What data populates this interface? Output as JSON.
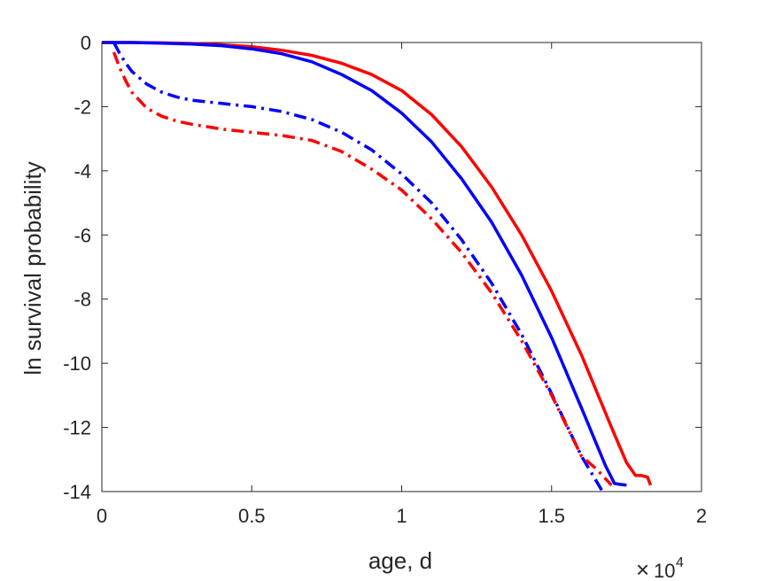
{
  "chart_data": {
    "type": "line",
    "xlabel": "age, d",
    "ylabel": "ln survival probability",
    "x_exponent_base": "10",
    "x_exponent_power": "4",
    "xlim": [
      0,
      2
    ],
    "ylim": [
      -14,
      0
    ],
    "x_tick_values": [
      0,
      0.5,
      1,
      1.5,
      2
    ],
    "x_tick_labels": [
      "0",
      "0.5",
      "1",
      "1.5",
      "2"
    ],
    "y_tick_values": [
      0,
      -2,
      -4,
      -6,
      -8,
      -10,
      -12,
      -14
    ],
    "y_tick_labels": [
      "0",
      "-2",
      "-4",
      "-6",
      "-8",
      "-10",
      "-12",
      "-14"
    ],
    "grid": false,
    "box": true,
    "series": [
      {
        "color": "#ff0000",
        "style": "solid",
        "x": [
          0,
          0.1,
          0.2,
          0.3,
          0.4,
          0.5,
          0.6,
          0.7,
          0.8,
          0.9,
          1.0,
          1.1,
          1.2,
          1.3,
          1.4,
          1.5,
          1.6,
          1.7,
          1.75,
          1.78,
          1.8,
          1.82,
          1.83
        ],
        "y": [
          0,
          0,
          -0.01,
          -0.03,
          -0.07,
          -0.13,
          -0.24,
          -0.4,
          -0.65,
          -1.0,
          -1.5,
          -2.25,
          -3.25,
          -4.5,
          -6.0,
          -7.75,
          -9.75,
          -12.0,
          -13.1,
          -13.5,
          -13.5,
          -13.55,
          -13.8
        ]
      },
      {
        "color": "#0000ff",
        "style": "solid",
        "x": [
          0,
          0.1,
          0.2,
          0.3,
          0.4,
          0.5,
          0.6,
          0.7,
          0.8,
          0.9,
          1.0,
          1.1,
          1.2,
          1.3,
          1.4,
          1.5,
          1.6,
          1.68,
          1.71,
          1.73,
          1.75
        ],
        "y": [
          0,
          0,
          -0.02,
          -0.05,
          -0.1,
          -0.2,
          -0.35,
          -0.6,
          -1.0,
          -1.5,
          -2.2,
          -3.1,
          -4.25,
          -5.6,
          -7.25,
          -9.2,
          -11.4,
          -13.2,
          -13.75,
          -13.78,
          -13.8
        ]
      },
      {
        "color": "#0000ff",
        "style": "dashdot",
        "x": [
          0.04,
          0.06,
          0.08,
          0.1,
          0.15,
          0.2,
          0.25,
          0.3,
          0.4,
          0.5,
          0.6,
          0.7,
          0.8,
          0.9,
          1.0,
          1.1,
          1.2,
          1.3,
          1.4,
          1.5,
          1.6,
          1.67
        ],
        "y": [
          0,
          -0.35,
          -0.65,
          -0.9,
          -1.3,
          -1.55,
          -1.7,
          -1.8,
          -1.9,
          -2.0,
          -2.15,
          -2.4,
          -2.8,
          -3.35,
          -4.1,
          -5.0,
          -6.15,
          -7.5,
          -9.1,
          -10.95,
          -12.9,
          -14.0
        ]
      },
      {
        "color": "#ff0000",
        "style": "dashdot",
        "x": [
          0.04,
          0.06,
          0.08,
          0.1,
          0.15,
          0.2,
          0.25,
          0.3,
          0.4,
          0.5,
          0.6,
          0.7,
          0.8,
          0.9,
          1.0,
          1.1,
          1.2,
          1.3,
          1.4,
          1.5,
          1.6,
          1.65,
          1.7
        ],
        "y": [
          -0.3,
          -0.8,
          -1.2,
          -1.55,
          -2.05,
          -2.3,
          -2.45,
          -2.55,
          -2.7,
          -2.8,
          -2.9,
          -3.05,
          -3.4,
          -3.95,
          -4.6,
          -5.5,
          -6.55,
          -7.8,
          -9.3,
          -11.0,
          -12.9,
          -13.3,
          -13.8
        ]
      }
    ]
  }
}
